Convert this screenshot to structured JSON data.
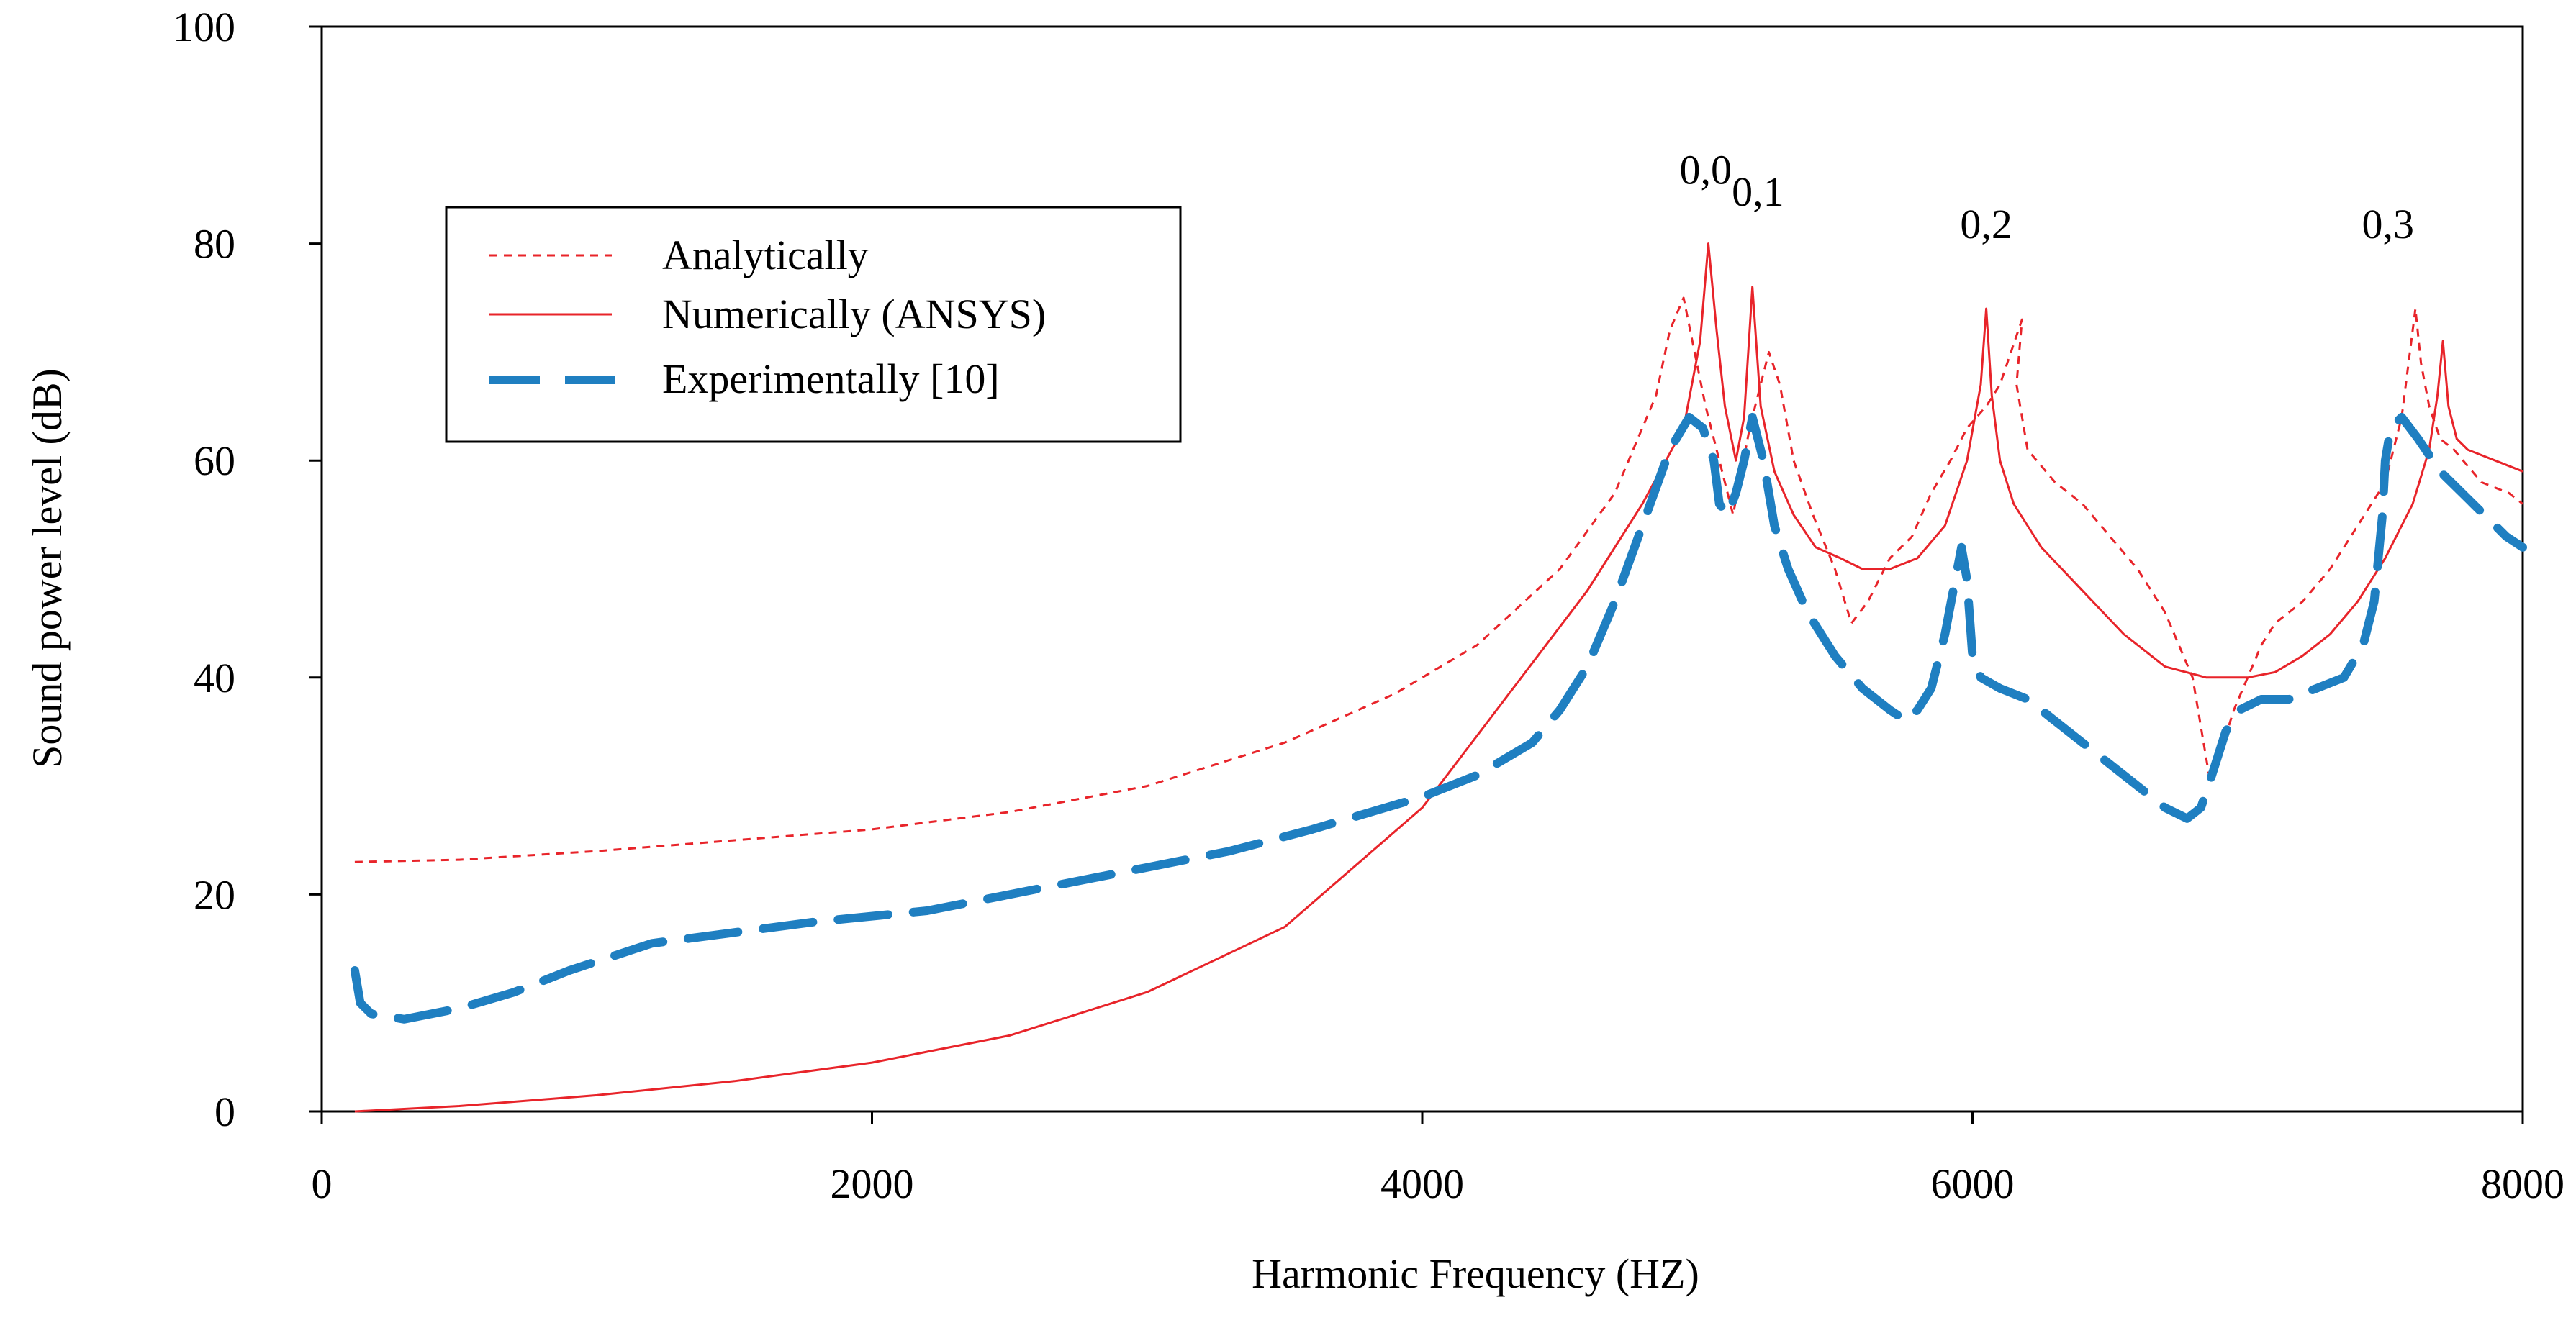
{
  "chart_data": {
    "type": "line",
    "title": "",
    "xlabel": "Harmonic Frequency (HZ)",
    "ylabel": "Sound power level (dB)",
    "xlim": [
      0,
      8000
    ],
    "ylim": [
      0,
      100
    ],
    "x_ticks": [
      "0",
      "2000",
      "4000",
      "6000",
      "8000"
    ],
    "x_tick_values": [
      0,
      2000,
      4000,
      6000,
      8000
    ],
    "y_ticks": [
      "0",
      "20",
      "40",
      "60",
      "80",
      "100"
    ],
    "y_tick_values": [
      0,
      20,
      40,
      60,
      80,
      100
    ],
    "grid": false,
    "legend_position": "upper-left",
    "series": [
      {
        "name": "Analytically",
        "style": "dotted",
        "color": "#e8242a",
        "points": [
          [
            120,
            23
          ],
          [
            500,
            23.2
          ],
          [
            1000,
            24
          ],
          [
            1500,
            25
          ],
          [
            2000,
            26
          ],
          [
            2500,
            27.6
          ],
          [
            3000,
            30
          ],
          [
            3500,
            34
          ],
          [
            3900,
            38.5
          ],
          [
            4200,
            43
          ],
          [
            4500,
            50
          ],
          [
            4700,
            57
          ],
          [
            4850,
            66
          ],
          [
            4900,
            72
          ],
          [
            4950,
            75
          ],
          [
            5030,
            65
          ],
          [
            5080,
            60
          ],
          [
            5130,
            55
          ],
          [
            5190,
            63
          ],
          [
            5260,
            70
          ],
          [
            5300,
            67
          ],
          [
            5350,
            60
          ],
          [
            5420,
            55
          ],
          [
            5500,
            50
          ],
          [
            5560,
            45
          ],
          [
            5620,
            47
          ],
          [
            5700,
            51
          ],
          [
            5780,
            53
          ],
          [
            5850,
            57
          ],
          [
            5920,
            60
          ],
          [
            5980,
            63
          ],
          [
            6050,
            65
          ],
          [
            6100,
            67
          ],
          [
            6140,
            70
          ],
          [
            6180,
            73
          ],
          [
            6160,
            67
          ],
          [
            6200,
            61
          ],
          [
            6300,
            58
          ],
          [
            6400,
            56
          ],
          [
            6500,
            53
          ],
          [
            6600,
            50
          ],
          [
            6700,
            46
          ],
          [
            6800,
            40
          ],
          [
            6860,
            31
          ],
          [
            6900,
            33
          ],
          [
            6950,
            37
          ],
          [
            7000,
            40
          ],
          [
            7050,
            43
          ],
          [
            7100,
            45
          ],
          [
            7200,
            47
          ],
          [
            7300,
            50
          ],
          [
            7400,
            54
          ],
          [
            7500,
            58
          ],
          [
            7560,
            64
          ],
          [
            7610,
            74
          ],
          [
            7630,
            69
          ],
          [
            7660,
            65
          ],
          [
            7700,
            62
          ],
          [
            7750,
            61
          ],
          [
            7850,
            58
          ],
          [
            7950,
            57
          ],
          [
            8000,
            56
          ]
        ]
      },
      {
        "name": "Numerically (ANSYS)",
        "style": "solid",
        "color": "#e8242a",
        "points": [
          [
            120,
            0
          ],
          [
            500,
            0.5
          ],
          [
            1000,
            1.5
          ],
          [
            1500,
            2.8
          ],
          [
            2000,
            4.5
          ],
          [
            2500,
            7
          ],
          [
            3000,
            11
          ],
          [
            3500,
            17
          ],
          [
            4000,
            28
          ],
          [
            4300,
            38
          ],
          [
            4600,
            48
          ],
          [
            4800,
            56
          ],
          [
            4950,
            63
          ],
          [
            5010,
            71
          ],
          [
            5040,
            80
          ],
          [
            5070,
            72
          ],
          [
            5100,
            65
          ],
          [
            5140,
            60
          ],
          [
            5170,
            64
          ],
          [
            5200,
            76
          ],
          [
            5230,
            65
          ],
          [
            5280,
            59
          ],
          [
            5350,
            55
          ],
          [
            5430,
            52
          ],
          [
            5520,
            51
          ],
          [
            5600,
            50
          ],
          [
            5700,
            50
          ],
          [
            5800,
            51
          ],
          [
            5900,
            54
          ],
          [
            5980,
            60
          ],
          [
            6030,
            67
          ],
          [
            6050,
            74
          ],
          [
            6070,
            66
          ],
          [
            6100,
            60
          ],
          [
            6150,
            56
          ],
          [
            6250,
            52
          ],
          [
            6400,
            48
          ],
          [
            6550,
            44
          ],
          [
            6700,
            41
          ],
          [
            6850,
            40
          ],
          [
            7000,
            40
          ],
          [
            7100,
            40.5
          ],
          [
            7200,
            42
          ],
          [
            7300,
            44
          ],
          [
            7400,
            47
          ],
          [
            7500,
            51
          ],
          [
            7600,
            56
          ],
          [
            7660,
            61
          ],
          [
            7690,
            66
          ],
          [
            7710,
            71
          ],
          [
            7730,
            65
          ],
          [
            7760,
            62
          ],
          [
            7800,
            61
          ],
          [
            7900,
            60
          ],
          [
            8000,
            59
          ]
        ]
      },
      {
        "name": "Experimentally [10]",
        "style": "dashed",
        "color": "#1f7fc1",
        "points": [
          [
            120,
            13
          ],
          [
            140,
            10
          ],
          [
            180,
            9
          ],
          [
            300,
            8.5
          ],
          [
            500,
            9.5
          ],
          [
            700,
            11
          ],
          [
            900,
            13
          ],
          [
            1200,
            15.5
          ],
          [
            1500,
            16.5
          ],
          [
            1800,
            17.5
          ],
          [
            2200,
            18.5
          ],
          [
            2600,
            20.5
          ],
          [
            3000,
            22.5
          ],
          [
            3300,
            24
          ],
          [
            3600,
            26
          ],
          [
            3800,
            27.5
          ],
          [
            4000,
            29
          ],
          [
            4200,
            31
          ],
          [
            4400,
            34
          ],
          [
            4500,
            37
          ],
          [
            4600,
            41
          ],
          [
            4700,
            47
          ],
          [
            4800,
            54
          ],
          [
            4900,
            61
          ],
          [
            4970,
            64
          ],
          [
            5020,
            63
          ],
          [
            5060,
            60
          ],
          [
            5080,
            56
          ],
          [
            5110,
            55
          ],
          [
            5140,
            57
          ],
          [
            5170,
            60
          ],
          [
            5200,
            64
          ],
          [
            5240,
            60
          ],
          [
            5280,
            54
          ],
          [
            5330,
            50
          ],
          [
            5400,
            46
          ],
          [
            5500,
            42
          ],
          [
            5600,
            39
          ],
          [
            5700,
            37
          ],
          [
            5760,
            36
          ],
          [
            5800,
            37
          ],
          [
            5850,
            39
          ],
          [
            5900,
            44
          ],
          [
            5930,
            48
          ],
          [
            5960,
            52
          ],
          [
            5980,
            49
          ],
          [
            6000,
            42
          ],
          [
            6030,
            40
          ],
          [
            6100,
            39
          ],
          [
            6200,
            38
          ],
          [
            6300,
            36
          ],
          [
            6400,
            34
          ],
          [
            6500,
            32
          ],
          [
            6600,
            30
          ],
          [
            6700,
            28
          ],
          [
            6780,
            27
          ],
          [
            6830,
            28
          ],
          [
            6870,
            31
          ],
          [
            6920,
            35
          ],
          [
            6970,
            37
          ],
          [
            7050,
            38
          ],
          [
            7150,
            38
          ],
          [
            7250,
            39
          ],
          [
            7350,
            40
          ],
          [
            7420,
            43
          ],
          [
            7460,
            47
          ],
          [
            7490,
            55
          ],
          [
            7500,
            60
          ],
          [
            7520,
            63
          ],
          [
            7560,
            64
          ],
          [
            7620,
            62
          ],
          [
            7700,
            59
          ],
          [
            7780,
            57
          ],
          [
            7860,
            55
          ],
          [
            7940,
            53
          ],
          [
            8000,
            52
          ]
        ]
      }
    ],
    "annotations": [
      {
        "text": "0,0",
        "x": 5030,
        "y": 85.5
      },
      {
        "text": "0,1",
        "x": 5220,
        "y": 83.5
      },
      {
        "text": "0,2",
        "x": 6050,
        "y": 80.5
      },
      {
        "text": "0,3",
        "x": 7510,
        "y": 80.5
      }
    ]
  },
  "legend": {
    "items": [
      {
        "label": "Analytically",
        "style": "dotted",
        "color": "#e8242a"
      },
      {
        "label": "Numerically (ANSYS)",
        "style": "solid",
        "color": "#e8242a"
      },
      {
        "label": "Experimentally [10]",
        "style": "dashed",
        "color": "#1f7fc1"
      }
    ]
  }
}
